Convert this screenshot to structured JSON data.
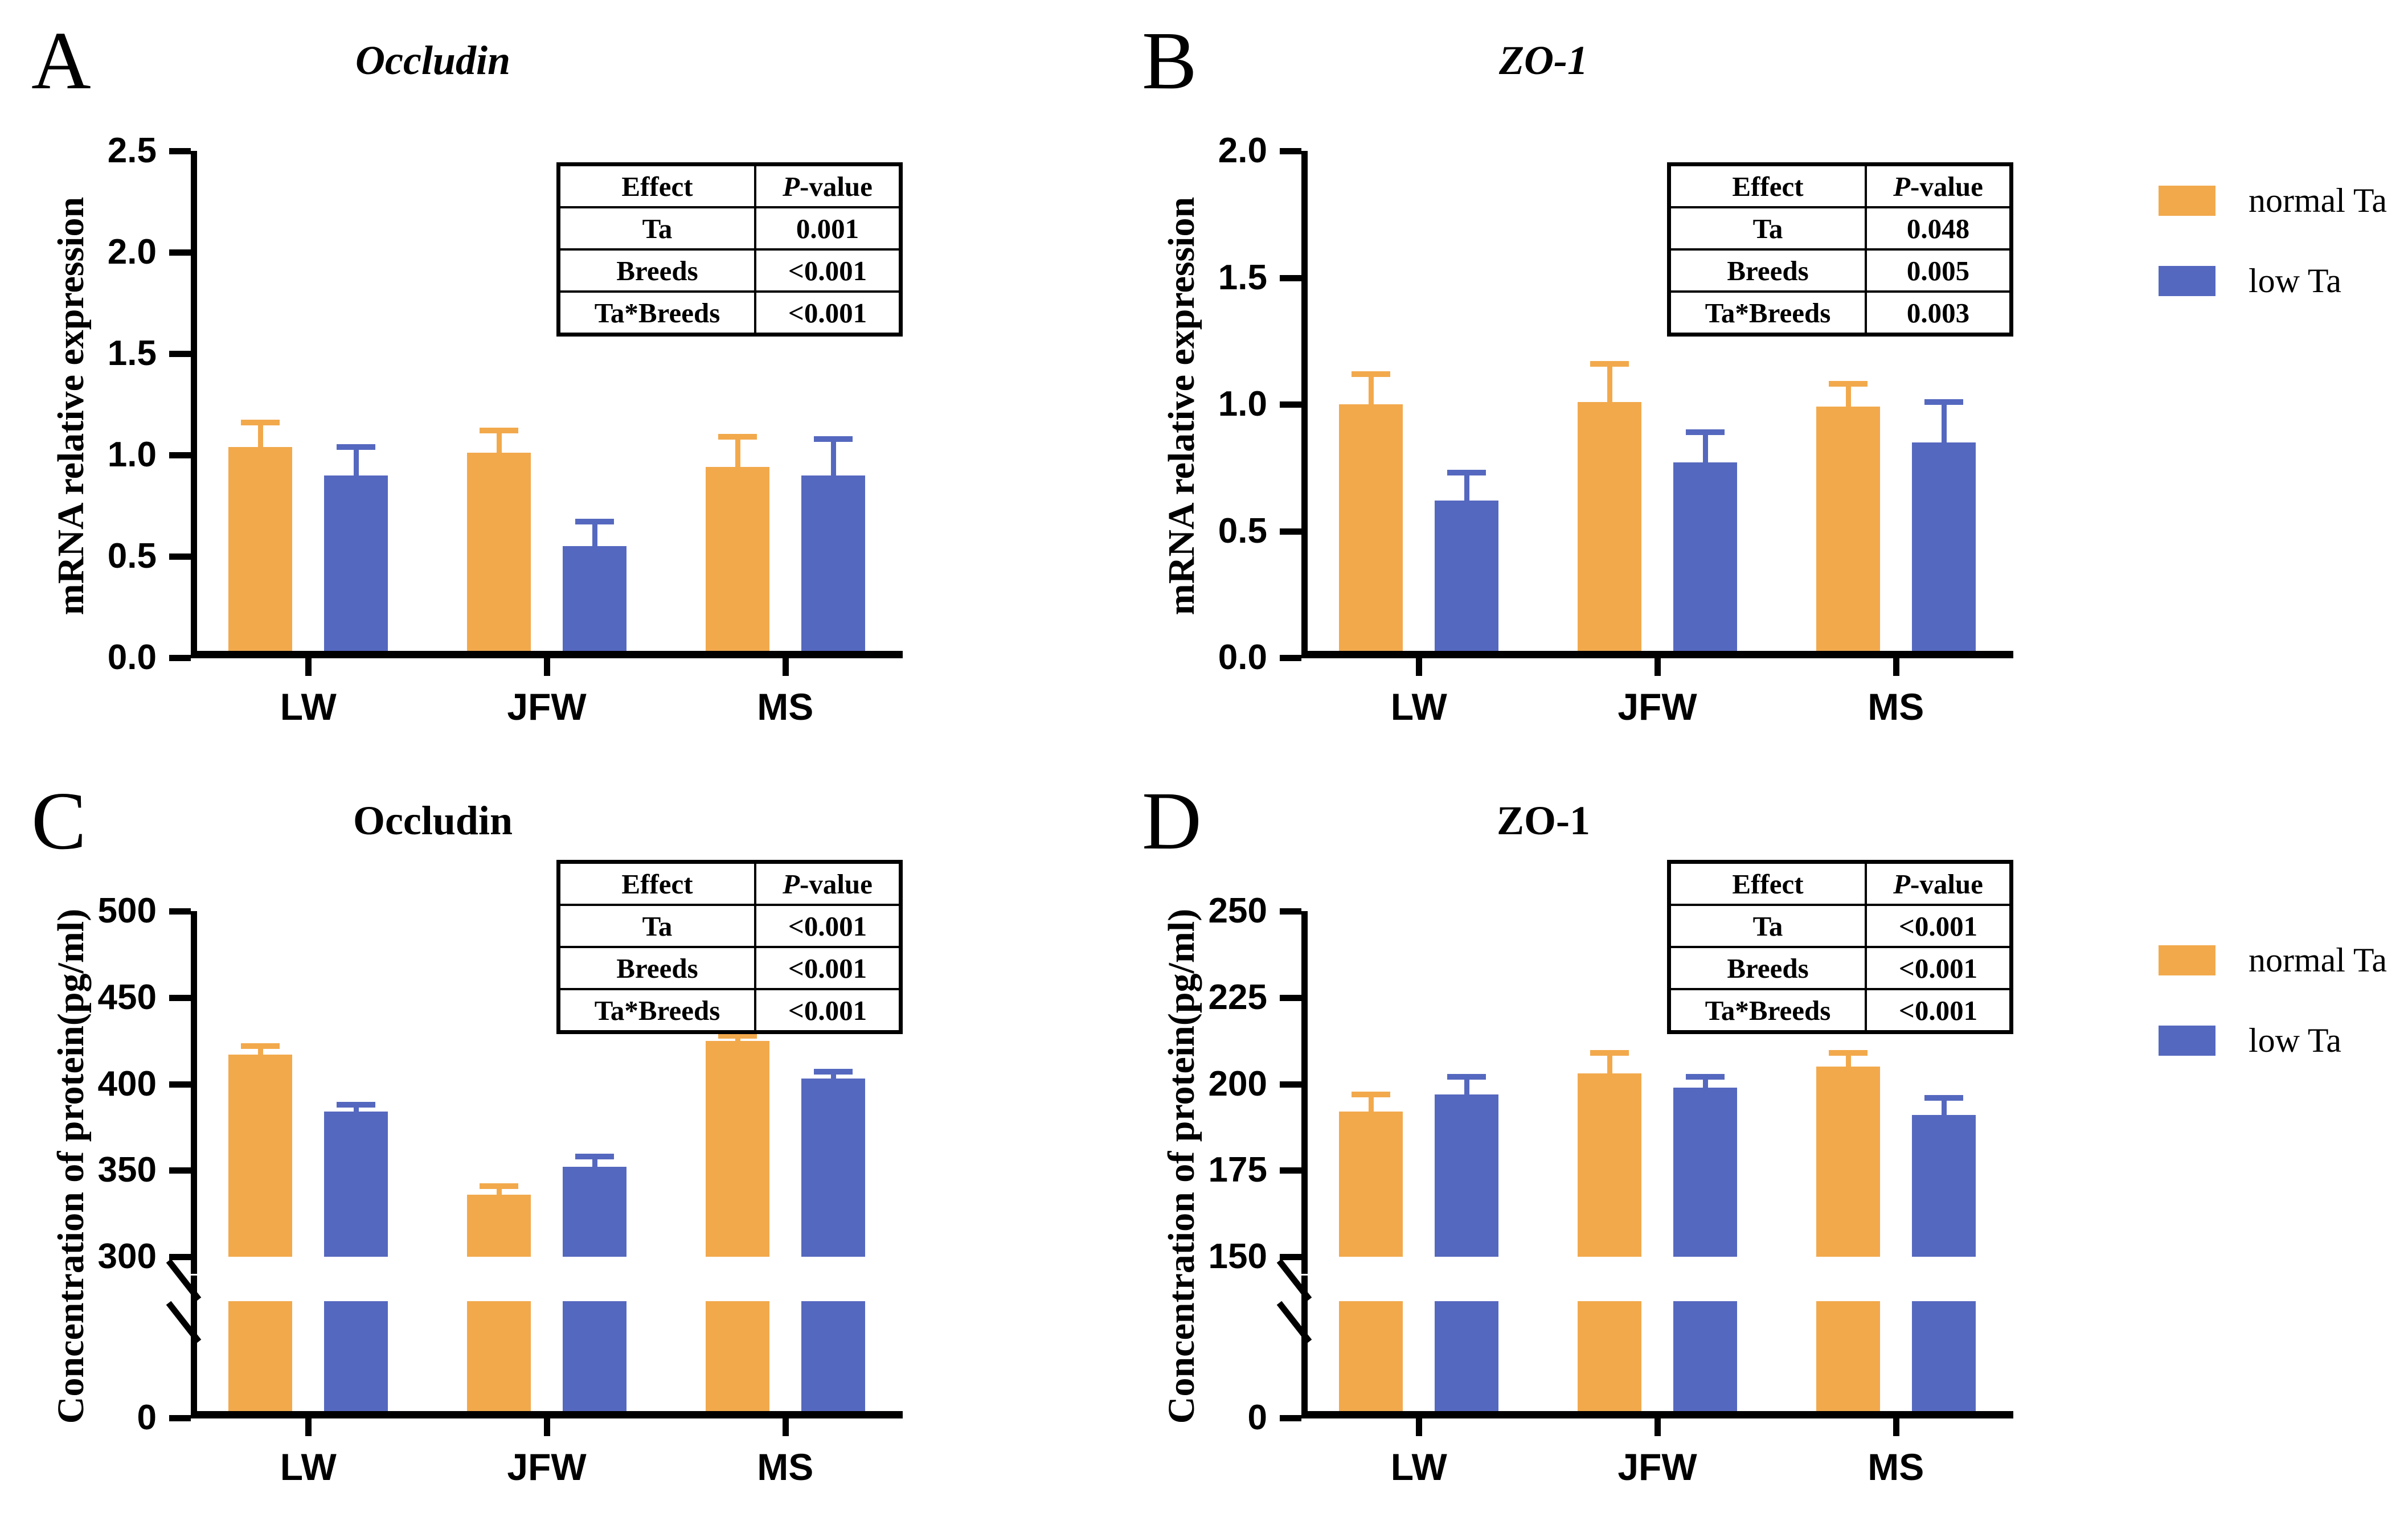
{
  "colors": {
    "normal_ta": "#F2A94C",
    "low_ta": "#5568BF",
    "axis": "#000000",
    "background": "#FFFFFF"
  },
  "legend": {
    "items": [
      {
        "label": "normal Ta",
        "color_key": "normal_ta"
      },
      {
        "label": "low Ta",
        "color_key": "low_ta"
      }
    ]
  },
  "chart_data": [
    {
      "id": "A",
      "panel_label": "A",
      "type": "bar",
      "title": "Occludin",
      "title_style": "bold-italic",
      "ylabel": "mRNA relative expression",
      "xlabel_categories": [
        "LW",
        "JFW",
        "MS"
      ],
      "ylim": [
        0,
        2.5
      ],
      "yticks": [
        0,
        0.5,
        1.0,
        1.5,
        2.0,
        2.5
      ],
      "ytick_labels": [
        "0.0",
        "0.5",
        "1.0",
        "1.5",
        "2.0",
        "2.5"
      ],
      "axis_break": null,
      "grid": false,
      "series": [
        {
          "name": "normal Ta",
          "values": [
            1.04,
            1.01,
            0.94
          ],
          "errors": [
            0.12,
            0.11,
            0.15
          ]
        },
        {
          "name": "low Ta",
          "values": [
            0.9,
            0.55,
            0.9
          ],
          "errors": [
            0.14,
            0.12,
            0.18
          ]
        }
      ],
      "stats_table": {
        "headers": [
          "Effect",
          "P-value"
        ],
        "rows": [
          [
            "Ta",
            "0.001"
          ],
          [
            "Breeds",
            "<0.001"
          ],
          [
            "Ta*Breeds",
            "<0.001"
          ]
        ]
      }
    },
    {
      "id": "B",
      "panel_label": "B",
      "type": "bar",
      "title": "ZO-1",
      "title_style": "bold-italic",
      "ylabel": "mRNA relative expression",
      "xlabel_categories": [
        "LW",
        "JFW",
        "MS"
      ],
      "ylim": [
        0,
        2.0
      ],
      "yticks": [
        0,
        0.5,
        1.0,
        1.5,
        2.0
      ],
      "ytick_labels": [
        "0.0",
        "0.5",
        "1.0",
        "1.5",
        "2.0"
      ],
      "axis_break": null,
      "grid": false,
      "series": [
        {
          "name": "normal Ta",
          "values": [
            1.0,
            1.01,
            0.99
          ],
          "errors": [
            0.12,
            0.15,
            0.09
          ]
        },
        {
          "name": "low Ta",
          "values": [
            0.62,
            0.77,
            0.85
          ],
          "errors": [
            0.11,
            0.12,
            0.16
          ]
        }
      ],
      "stats_table": {
        "headers": [
          "Effect",
          "P-value"
        ],
        "rows": [
          [
            "Ta",
            "0.048"
          ],
          [
            "Breeds",
            "0.005"
          ],
          [
            "Ta*Breeds",
            "0.003"
          ]
        ]
      }
    },
    {
      "id": "C",
      "panel_label": "C",
      "type": "bar",
      "title": "Occludin",
      "title_style": "bold",
      "ylabel": "Concentration of protein(pg/ml)",
      "xlabel_categories": [
        "LW",
        "JFW",
        "MS"
      ],
      "ylim": [
        0,
        500
      ],
      "yticks": [
        0,
        300,
        350,
        400,
        450,
        500
      ],
      "ytick_labels": [
        "0",
        "300",
        "350",
        "400",
        "450",
        "500"
      ],
      "axis_break": {
        "lower": 0,
        "resume": 300
      },
      "grid": false,
      "series": [
        {
          "name": "normal Ta",
          "values": [
            417,
            336,
            425
          ],
          "errors": [
            5,
            5,
            3
          ]
        },
        {
          "name": "low Ta",
          "values": [
            384,
            352,
            403
          ],
          "errors": [
            4,
            6,
            4
          ]
        }
      ],
      "stats_table": {
        "headers": [
          "Effect",
          "P-value"
        ],
        "rows": [
          [
            "Ta",
            "<0.001"
          ],
          [
            "Breeds",
            "<0.001"
          ],
          [
            "Ta*Breeds",
            "<0.001"
          ]
        ]
      }
    },
    {
      "id": "D",
      "panel_label": "D",
      "type": "bar",
      "title": "ZO-1",
      "title_style": "bold",
      "ylabel": "Concentration of protein(pg/ml)",
      "xlabel_categories": [
        "LW",
        "JFW",
        "MS"
      ],
      "ylim": [
        0,
        250
      ],
      "yticks": [
        0,
        150,
        175,
        200,
        225,
        250
      ],
      "ytick_labels": [
        "0",
        "150",
        "175",
        "200",
        "225",
        "250"
      ],
      "axis_break": {
        "lower": 0,
        "resume": 150
      },
      "grid": false,
      "series": [
        {
          "name": "normal Ta",
          "values": [
            192,
            203,
            205
          ],
          "errors": [
            5,
            6,
            4
          ]
        },
        {
          "name": "low Ta",
          "values": [
            197,
            199,
            191
          ],
          "errors": [
            5,
            3,
            5
          ]
        }
      ],
      "stats_table": {
        "headers": [
          "Effect",
          "P-value"
        ],
        "rows": [
          [
            "Ta",
            "<0.001"
          ],
          [
            "Breeds",
            "<0.001"
          ],
          [
            "Ta*Breeds",
            "<0.001"
          ]
        ]
      }
    }
  ]
}
